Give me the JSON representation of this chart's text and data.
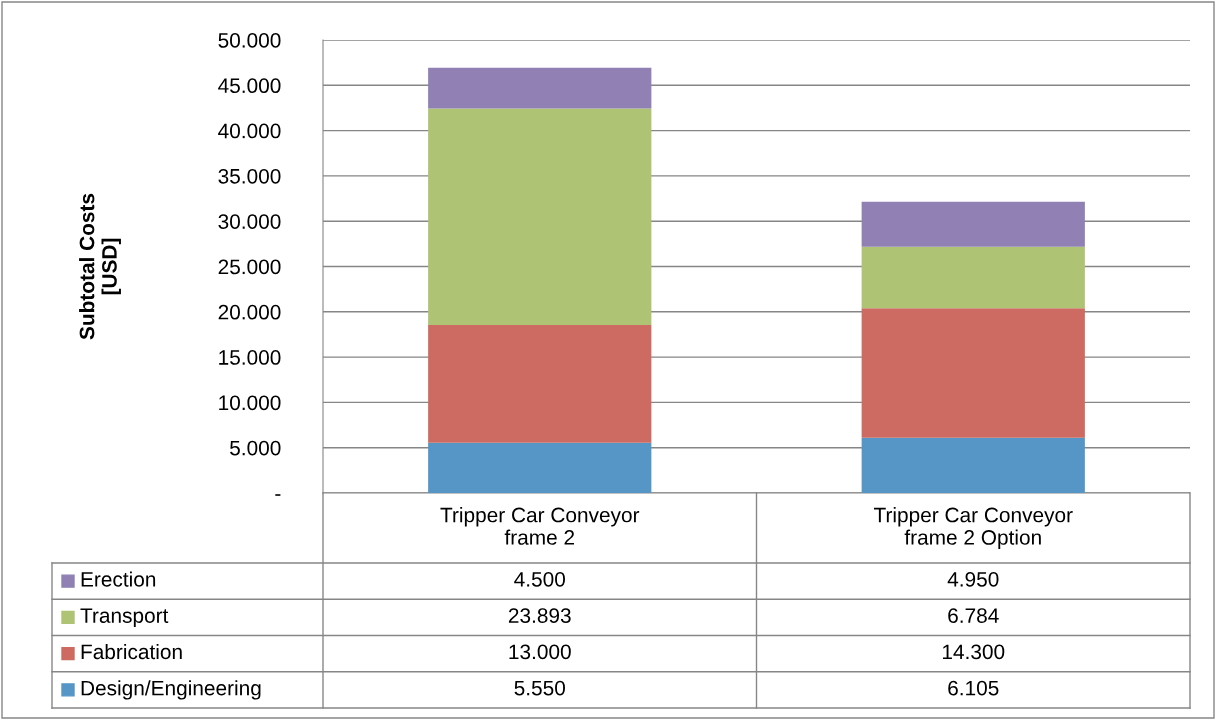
{
  "chart_data": {
    "type": "bar",
    "stacked": true,
    "ylabel": "Subtotal Costs\n[USD]",
    "categories": [
      "Tripper Car Conveyor\nframe 2",
      "Tripper Car Conveyor\nframe 2 Option"
    ],
    "series": [
      {
        "name": "Design/Engineering",
        "color": "#5596c6",
        "values": [
          5550,
          6105
        ],
        "value_labels": [
          "5.550",
          "6.105"
        ]
      },
      {
        "name": "Fabrication",
        "color": "#cd6a61",
        "values": [
          13000,
          14300
        ],
        "value_labels": [
          "13.000",
          "14.300"
        ]
      },
      {
        "name": "Transport",
        "color": "#aec373",
        "values": [
          23893,
          6784
        ],
        "value_labels": [
          "23.893",
          "6.784"
        ]
      },
      {
        "name": "Erection",
        "color": "#9080b4",
        "values": [
          4500,
          4950
        ],
        "value_labels": [
          "4.500",
          "4.950"
        ]
      }
    ],
    "ylim": [
      0,
      50000
    ],
    "yticks": [
      {
        "value": 0,
        "label": "-"
      },
      {
        "value": 5000,
        "label": "5.000"
      },
      {
        "value": 10000,
        "label": "10.000"
      },
      {
        "value": 15000,
        "label": "15.000"
      },
      {
        "value": 20000,
        "label": "20.000"
      },
      {
        "value": 25000,
        "label": "25.000"
      },
      {
        "value": 30000,
        "label": "30.000"
      },
      {
        "value": 35000,
        "label": "35.000"
      },
      {
        "value": 40000,
        "label": "40.000"
      },
      {
        "value": 45000,
        "label": "45.000"
      },
      {
        "value": 50000,
        "label": "50.000"
      }
    ],
    "grid": "y",
    "legend": "bottom"
  }
}
